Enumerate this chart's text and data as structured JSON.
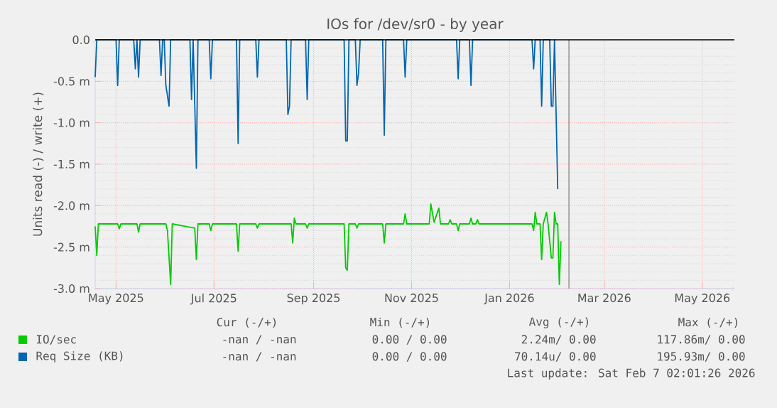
{
  "chart_data": {
    "type": "line",
    "title": "IOs for /dev/sr0 - by year",
    "ylabel": "Units read (-) / write (+)",
    "xlim": [
      "2025-04-18",
      "2026-05-21"
    ],
    "xticks": [
      {
        "value": "2025-05-01",
        "label": "May 2025"
      },
      {
        "value": "2025-07-01",
        "label": "Jul 2025"
      },
      {
        "value": "2025-09-01",
        "label": "Sep 2025"
      },
      {
        "value": "2025-11-01",
        "label": "Nov 2025"
      },
      {
        "value": "2026-01-01",
        "label": "Jan 2026"
      },
      {
        "value": "2026-03-01",
        "label": "Mar 2026"
      },
      {
        "value": "2026-05-01",
        "label": "May 2026"
      }
    ],
    "ylim": [
      -3.0,
      0.0
    ],
    "yticks": [
      {
        "value": 0,
        "label": "0.0"
      },
      {
        "value": -0.5,
        "label": "-0.5 m"
      },
      {
        "value": -1.0,
        "label": "-1.0 m"
      },
      {
        "value": -1.5,
        "label": "-1.5 m"
      },
      {
        "value": -2.0,
        "label": "-2.0 m"
      },
      {
        "value": -2.5,
        "label": "-2.5 m"
      },
      {
        "value": -3.0,
        "label": "-3.0 m"
      }
    ],
    "grid": true,
    "legend": "bottom",
    "series": [
      {
        "name": "IO/sec",
        "color": "#00cc00",
        "x": [
          "2025-04-18",
          "2025-04-19",
          "2025-04-20",
          "2025-05-02",
          "2025-05-03",
          "2025-05-04",
          "2025-05-14",
          "2025-05-15",
          "2025-05-16",
          "2025-06-01",
          "2025-06-02",
          "2025-06-04",
          "2025-06-05",
          "2025-06-19",
          "2025-06-20",
          "2025-06-21",
          "2025-06-28",
          "2025-06-29",
          "2025-06-30",
          "2025-07-15",
          "2025-07-16",
          "2025-07-17",
          "2025-07-27",
          "2025-07-28",
          "2025-07-29",
          "2025-08-18",
          "2025-08-19",
          "2025-08-20",
          "2025-08-21",
          "2025-08-27",
          "2025-08-28",
          "2025-08-29",
          "2025-09-20",
          "2025-09-21",
          "2025-09-22",
          "2025-09-23",
          "2025-09-27",
          "2025-09-28",
          "2025-09-29",
          "2025-10-14",
          "2025-10-15",
          "2025-10-16",
          "2025-10-27",
          "2025-10-28",
          "2025-10-29",
          "2025-11-12",
          "2025-11-13",
          "2025-11-15",
          "2025-11-18",
          "2025-11-19",
          "2025-11-24",
          "2025-11-25",
          "2025-11-26",
          "2025-11-29",
          "2025-11-30",
          "2025-12-01",
          "2025-12-07",
          "2025-12-08",
          "2025-12-09",
          "2025-12-11",
          "2025-12-12",
          "2025-12-13",
          "2026-01-15",
          "2026-01-16",
          "2026-01-17",
          "2026-01-18",
          "2026-01-20",
          "2026-01-21",
          "2026-01-22",
          "2026-01-24",
          "2026-01-25",
          "2026-01-27",
          "2026-01-28",
          "2026-01-29",
          "2026-01-30",
          "2026-01-31",
          "2026-02-01",
          "2026-02-02"
        ],
        "values": [
          -2.25,
          -2.6,
          -2.22,
          -2.22,
          -2.28,
          -2.22,
          -2.22,
          -2.32,
          -2.22,
          -2.22,
          -2.3,
          -2.95,
          -2.22,
          -2.27,
          -2.65,
          -2.22,
          -2.22,
          -2.3,
          -2.22,
          -2.22,
          -2.55,
          -2.22,
          -2.22,
          -2.27,
          -2.22,
          -2.22,
          -2.45,
          -2.15,
          -2.22,
          -2.22,
          -2.27,
          -2.22,
          -2.22,
          -2.75,
          -2.78,
          -2.22,
          -2.22,
          -2.27,
          -2.22,
          -2.22,
          -2.45,
          -2.22,
          -2.22,
          -2.1,
          -2.22,
          -2.22,
          -1.98,
          -2.2,
          -2.03,
          -2.22,
          -2.22,
          -2.17,
          -2.22,
          -2.22,
          -2.3,
          -2.22,
          -2.22,
          -2.15,
          -2.22,
          -2.22,
          -2.17,
          -2.22,
          -2.22,
          -2.3,
          -2.08,
          -2.22,
          -2.22,
          -2.65,
          -2.22,
          -2.08,
          -2.22,
          -2.63,
          -2.63,
          -2.08,
          -2.22,
          -2.22,
          -2.95,
          -2.43
        ]
      },
      {
        "name": "Req Size (KB)",
        "color": "#0066b3",
        "x": [
          "2025-04-18",
          "2025-04-19",
          "2025-05-01",
          "2025-05-02",
          "2025-05-03",
          "2025-05-12",
          "2025-05-13",
          "2025-05-14",
          "2025-05-15",
          "2025-05-16",
          "2025-05-28",
          "2025-05-29",
          "2025-05-30",
          "2025-05-31",
          "2025-06-01",
          "2025-06-03",
          "2025-06-04",
          "2025-06-16",
          "2025-06-17",
          "2025-06-18",
          "2025-06-20",
          "2025-06-21",
          "2025-06-28",
          "2025-06-29",
          "2025-06-30",
          "2025-07-15",
          "2025-07-16",
          "2025-07-17",
          "2025-07-27",
          "2025-07-28",
          "2025-07-29",
          "2025-08-15",
          "2025-08-16",
          "2025-08-17",
          "2025-08-18",
          "2025-08-27",
          "2025-08-28",
          "2025-08-29",
          "2025-09-20",
          "2025-09-21",
          "2025-09-22",
          "2025-09-23",
          "2025-09-27",
          "2025-09-28",
          "2025-09-29",
          "2025-09-30",
          "2025-10-14",
          "2025-10-15",
          "2025-10-16",
          "2025-10-27",
          "2025-10-28",
          "2025-10-29",
          "2025-11-29",
          "2025-11-30",
          "2025-12-01",
          "2025-12-07",
          "2025-12-08",
          "2025-12-09",
          "2026-01-15",
          "2026-01-16",
          "2026-01-17",
          "2026-01-20",
          "2026-01-21",
          "2026-01-22",
          "2026-01-26",
          "2026-01-27",
          "2026-01-28",
          "2026-01-29",
          "2026-01-31"
        ],
        "values": [
          -0.45,
          0,
          0,
          -0.55,
          0,
          0,
          -0.35,
          0,
          -0.45,
          0,
          0,
          -0.43,
          0,
          0,
          -0.55,
          -0.8,
          0,
          0,
          -0.72,
          0,
          -1.55,
          0,
          0,
          -0.47,
          0,
          0,
          -1.25,
          0,
          0,
          -0.45,
          0,
          0,
          -0.9,
          -0.8,
          0,
          0,
          -0.72,
          0,
          0,
          -1.22,
          -1.22,
          0,
          0,
          -0.55,
          -0.4,
          0,
          0,
          -1.15,
          0,
          0,
          -0.45,
          0,
          0,
          -0.47,
          0,
          0,
          -0.55,
          0,
          0,
          -0.35,
          0,
          0,
          -0.8,
          0,
          0,
          -0.8,
          -0.8,
          0,
          -1.8
        ]
      }
    ],
    "ref_lines": [
      {
        "axis": "y",
        "value": 0,
        "color": "#000000"
      },
      {
        "axis": "x",
        "value": "2026-02-07",
        "color": "#999999"
      }
    ],
    "annotations": [
      "Cur (-/+)",
      "Min (-/+)",
      "Avg (-/+)",
      "Max (-/+)",
      "-nan /  -nan",
      "0.00 /  0.00",
      "2.24m/  0.00",
      "117.86m/  0.00",
      "-nan /  -nan",
      "0.00 /  0.00",
      "70.14u/  0.00",
      "195.93m/  0.00",
      "Last update: Sat Feb  7 02:01:26 2026"
    ]
  }
}
